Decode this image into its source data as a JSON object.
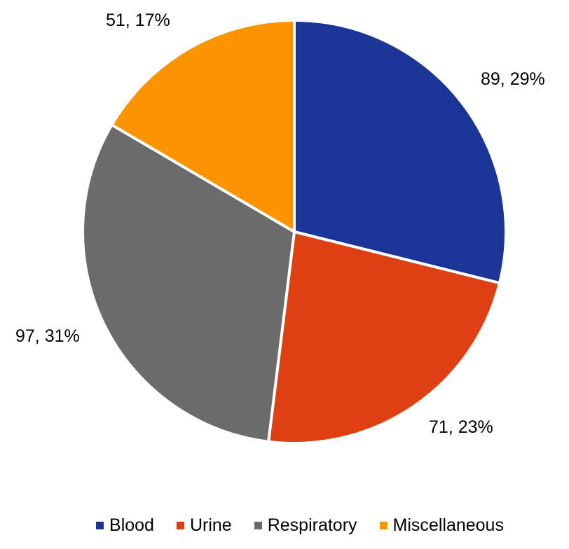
{
  "chart_data": {
    "type": "pie",
    "title": "",
    "start_angle_deg": 0,
    "direction": "clockwise",
    "legend_position": "bottom",
    "slices": [
      {
        "name": "Blood",
        "value": 89,
        "percent_label": "89, 29%",
        "color": "#1b3597"
      },
      {
        "name": "Urine",
        "value": 71,
        "percent_label": "71, 23%",
        "color": "#de4012"
      },
      {
        "name": "Respiratory",
        "value": 97,
        "percent_label": "97, 31%",
        "color": "#6b6b6b"
      },
      {
        "name": "Miscellaneous",
        "value": 51,
        "percent_label": "51, 17%",
        "color": "#fc9401"
      }
    ]
  }
}
